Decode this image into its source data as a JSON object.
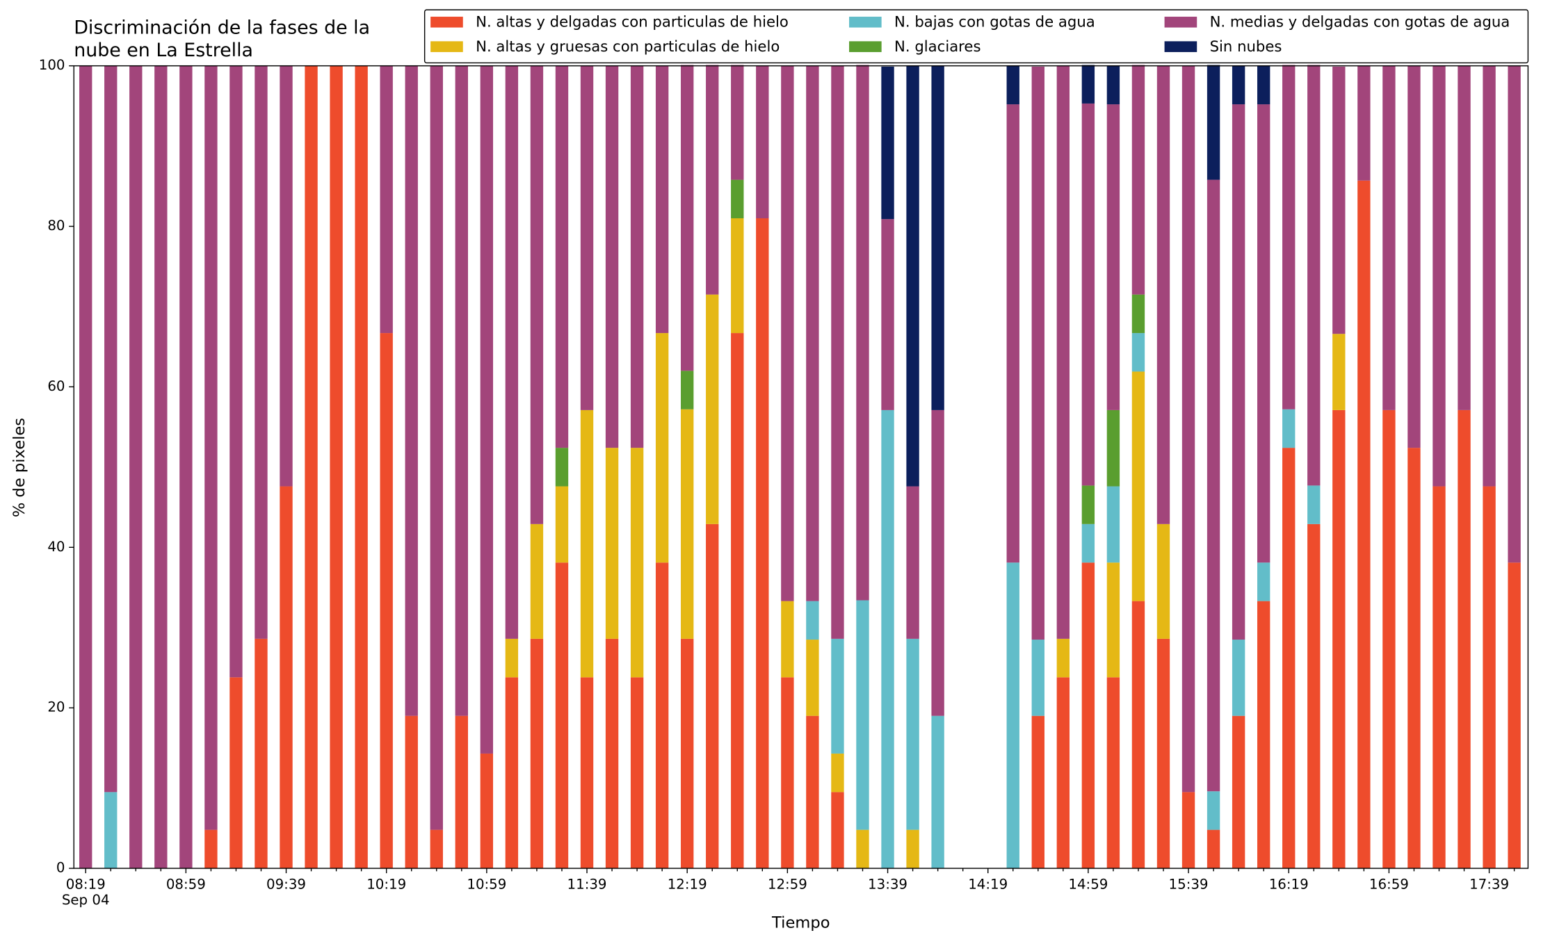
{
  "chart_data": {
    "type": "stacked-bar",
    "title": [
      "Discriminación de la fases de la",
      "nube en La Estrella"
    ],
    "xlabel": "Tiempo",
    "ylabel": "% de pixeles",
    "x_sublabel": "Sep 04",
    "categories": [
      "08:19",
      null,
      null,
      null,
      "08:59",
      null,
      null,
      null,
      "09:39",
      null,
      null,
      null,
      "10:19",
      null,
      null,
      null,
      "10:59",
      null,
      null,
      null,
      "11:39",
      null,
      null,
      null,
      "12:19",
      null,
      null,
      null,
      "12:59",
      null,
      null,
      null,
      "13:39",
      null,
      null,
      null,
      "14:19",
      null,
      null,
      null,
      "14:59",
      null,
      null,
      null,
      "15:39",
      null,
      null,
      null,
      "16:19",
      null,
      null,
      null,
      "16:59",
      null,
      null,
      null,
      "17:39",
      null
    ],
    "ylim": [
      0,
      100
    ],
    "yticks": [
      0,
      20,
      40,
      60,
      80,
      100
    ],
    "legend": "upper right",
    "series": [
      {
        "name": "N. altas y delgadas con particulas de hielo",
        "color": "#ee4c2c",
        "values": [
          0,
          0,
          0,
          0,
          0,
          4.8,
          23.8,
          28.6,
          47.6,
          100,
          100,
          100,
          66.7,
          19,
          4.8,
          19,
          14.3,
          23.8,
          28.6,
          38.1,
          23.8,
          28.6,
          23.8,
          38.1,
          28.6,
          42.9,
          66.7,
          81,
          23.8,
          19,
          9.5,
          0,
          0,
          0,
          0,
          null,
          null,
          0,
          19,
          23.8,
          38.1,
          23.8,
          33.3,
          28.6,
          9.5,
          4.8,
          19,
          33.3,
          52.4,
          42.9,
          57.1,
          85.7,
          57.1,
          52.4,
          47.6,
          57.1,
          47.6,
          38.1
        ]
      },
      {
        "name": "N. altas y gruesas con particulas de hielo",
        "color": "#e5b815",
        "values": [
          0,
          0,
          0,
          0,
          0,
          0,
          0,
          0,
          0,
          0,
          0,
          0,
          0,
          0,
          0,
          0,
          0,
          4.8,
          14.3,
          9.5,
          33.3,
          23.8,
          28.6,
          28.6,
          28.6,
          28.6,
          14.3,
          0,
          9.5,
          9.5,
          4.8,
          4.8,
          0,
          4.8,
          0,
          null,
          null,
          0,
          0,
          4.8,
          0,
          14.3,
          28.6,
          14.3,
          0,
          0,
          0,
          0,
          0,
          0,
          9.5,
          0,
          0,
          0,
          0,
          0,
          0,
          0
        ]
      },
      {
        "name": "N. bajas con gotas de agua",
        "color": "#62bdc9",
        "values": [
          0,
          9.5,
          0,
          0,
          0,
          0,
          0,
          0,
          0,
          0,
          0,
          0,
          0,
          0,
          0,
          0,
          0,
          0,
          0,
          0,
          0,
          0,
          0,
          0,
          0,
          0,
          0,
          0,
          0,
          4.8,
          14.3,
          28.6,
          57.1,
          23.8,
          19,
          null,
          null,
          38.1,
          9.5,
          0,
          4.8,
          9.5,
          4.8,
          0,
          0,
          4.8,
          9.5,
          4.8,
          4.8,
          4.8,
          0,
          0,
          0,
          0,
          0,
          0,
          0,
          0
        ]
      },
      {
        "name": "N. glaciares",
        "color": "#5a9e2f",
        "values": [
          0,
          0,
          0,
          0,
          0,
          0,
          0,
          0,
          0,
          0,
          0,
          0,
          0,
          0,
          0,
          0,
          0,
          0,
          0,
          4.8,
          0,
          0,
          0,
          0,
          4.8,
          0,
          4.8,
          0,
          0,
          0,
          0,
          0,
          0,
          0,
          0,
          null,
          null,
          0,
          0,
          0,
          4.8,
          9.5,
          4.8,
          0,
          0,
          0,
          0,
          0,
          0,
          0,
          0,
          0,
          0,
          0,
          0,
          0,
          0,
          0
        ]
      },
      {
        "name": "N. medias y delgadas con gotas de agua",
        "color": "#a2457b",
        "values": [
          100,
          90.5,
          100,
          100,
          100,
          95.2,
          76.2,
          71.4,
          52.4,
          0,
          0,
          0,
          33.3,
          81,
          95.2,
          81,
          85.7,
          71.4,
          57.1,
          47.6,
          42.9,
          47.6,
          47.6,
          33.3,
          38.1,
          28.6,
          14.3,
          19,
          66.7,
          66.7,
          71.4,
          66.7,
          23.8,
          19,
          38.1,
          null,
          null,
          57.1,
          71.4,
          71.4,
          47.6,
          38.1,
          28.6,
          57.1,
          90.5,
          76.2,
          66.7,
          57.1,
          42.9,
          52.4,
          33.3,
          14.3,
          42.9,
          47.6,
          52.4,
          42.9,
          52.4,
          61.9
        ]
      },
      {
        "name": "Sin nubes",
        "color": "#0c1f5c",
        "values": [
          0,
          0,
          0,
          0,
          0,
          0,
          0,
          0,
          0,
          0,
          0,
          0,
          0,
          0,
          0,
          0,
          0,
          0,
          0,
          0,
          0,
          0,
          0,
          0,
          0,
          0,
          0,
          0,
          0,
          0,
          0,
          0,
          19,
          52.4,
          42.9,
          null,
          null,
          4.8,
          0,
          0,
          4.8,
          4.8,
          0,
          0,
          0,
          14.3,
          4.8,
          4.8,
          0,
          0,
          0,
          0,
          0,
          0,
          0,
          0,
          0,
          0
        ]
      }
    ]
  }
}
